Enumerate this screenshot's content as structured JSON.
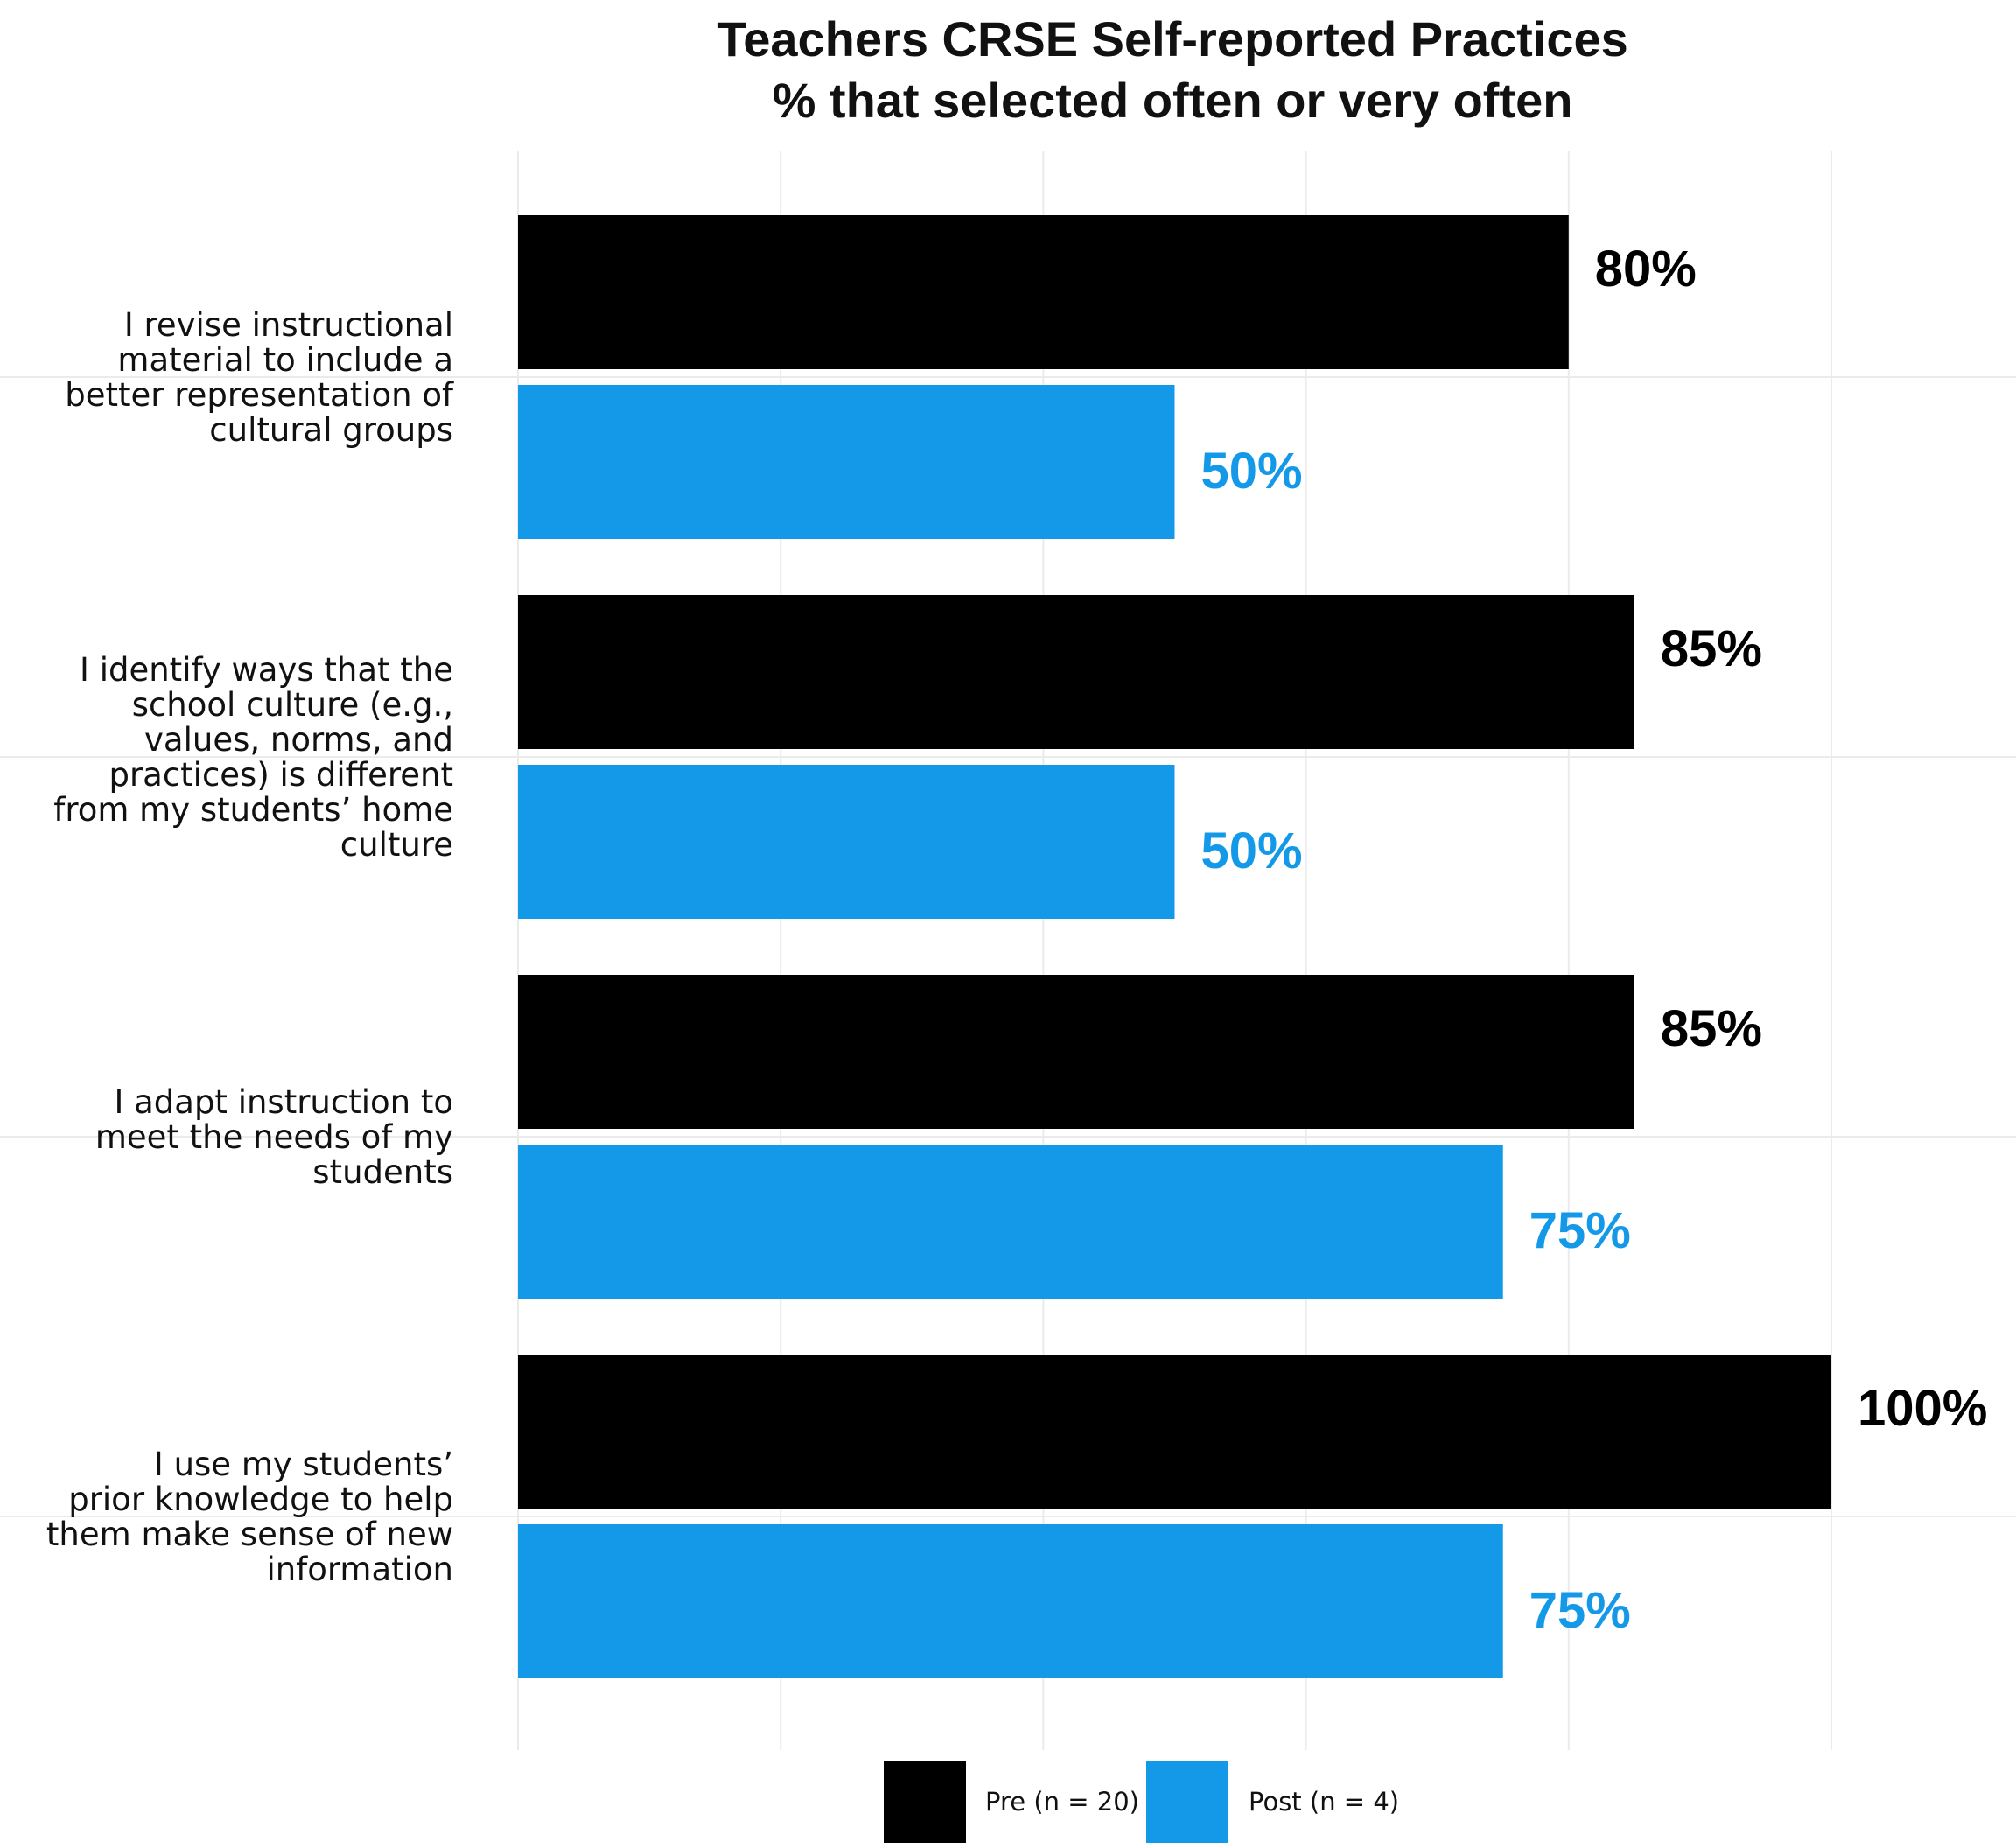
{
  "chart_data": {
    "type": "bar",
    "orientation": "horizontal",
    "title": [
      "Teachers CRSE Self-reported Practices",
      "% that selected often or very often"
    ],
    "categories": [
      [
        "I revise instructional",
        "material to include a",
        "better representation of",
        "cultural groups"
      ],
      [
        "I identify ways that the",
        "school culture (e.g.,",
        "values, norms, and",
        "practices) is different",
        "from my students’ home",
        "culture"
      ],
      [
        "I adapt instruction to",
        "meet the needs of my",
        "students"
      ],
      [
        "I use my students’",
        "prior knowledge to help",
        "them make sense of new",
        "information"
      ]
    ],
    "series": [
      {
        "name": "Pre (n = 20)",
        "color": "#000000",
        "values": [
          80,
          85,
          85,
          100
        ],
        "labels": [
          "80%",
          "85%",
          "85%",
          "100%"
        ]
      },
      {
        "name": "Post (n = 4)",
        "color": "#1499E8",
        "values": [
          50,
          50,
          75,
          75
        ],
        "labels": [
          "50%",
          "50%",
          "75%",
          "75%"
        ]
      }
    ],
    "xlim": [
      0,
      100
    ],
    "grid": true,
    "legend_position": "bottom"
  }
}
